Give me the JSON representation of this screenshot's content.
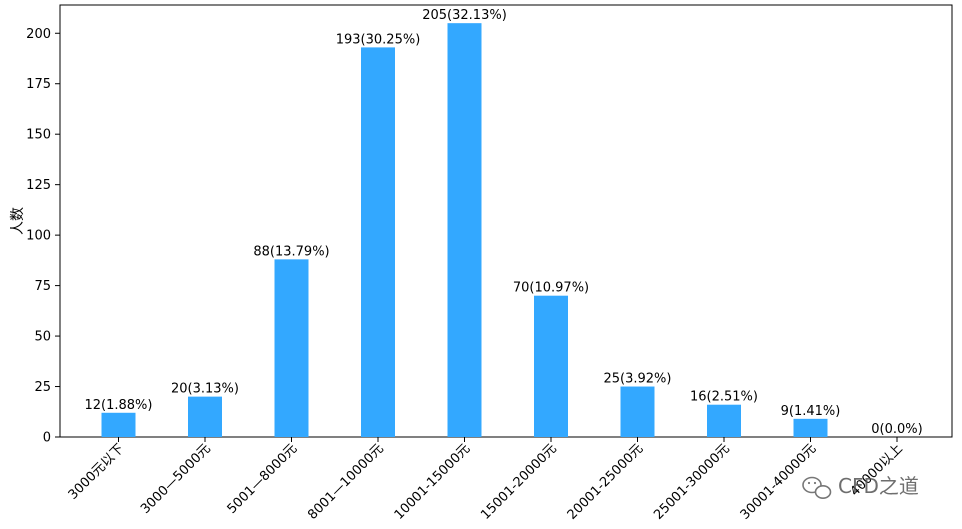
{
  "chart_data": {
    "type": "bar",
    "categories": [
      "3000元以下",
      "3000—5000元",
      "5001—8000元",
      "8001—10000元",
      "10001-15000元",
      "15001-20000元",
      "20001-25000元",
      "25001-30000元",
      "30001-40000元",
      "40000以上"
    ],
    "values": [
      12,
      20,
      88,
      193,
      205,
      70,
      25,
      16,
      9,
      0
    ],
    "data_labels": [
      "12(1.88%)",
      "20(3.13%)",
      "88(13.79%)",
      "193(30.25%)",
      "205(32.13%)",
      "70(10.97%)",
      "25(3.92%)",
      "16(2.51%)",
      "9(1.41%)",
      "0(0.0%)"
    ],
    "title": "",
    "xlabel": "",
    "ylabel": "人数",
    "ylim": [
      0,
      214
    ],
    "yticks": [
      0,
      25,
      50,
      75,
      100,
      125,
      150,
      175,
      200
    ],
    "grid": false,
    "legend": "none",
    "bar_color": "#33a8ff"
  },
  "watermark": {
    "text": "CFD之道",
    "icon": "wechat-icon"
  }
}
